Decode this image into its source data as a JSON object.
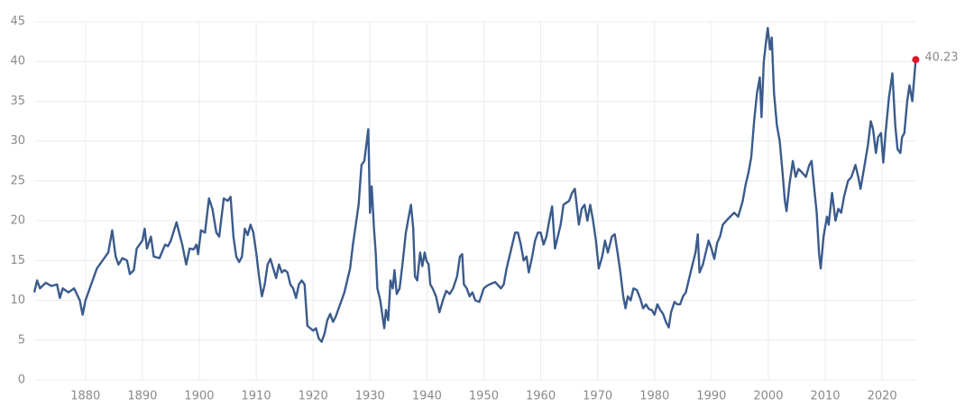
{
  "chart_data": {
    "type": "line",
    "x": [
      1871,
      1871.5,
      1872,
      1873,
      1874,
      1875,
      1875.5,
      1876,
      1877,
      1878,
      1879,
      1879.5,
      1880,
      1881,
      1882,
      1883,
      1884,
      1884.7,
      1885.3,
      1885.8,
      1886.5,
      1887.3,
      1887.8,
      1888.5,
      1889,
      1890,
      1890.4,
      1890.8,
      1891.5,
      1892,
      1893,
      1894,
      1894.5,
      1895,
      1896,
      1897,
      1897.7,
      1898.3,
      1899,
      1899.5,
      1899.8,
      1900.3,
      1901,
      1901.7,
      1902.3,
      1903,
      1903.5,
      1904.3,
      1905,
      1905.5,
      1906,
      1906.5,
      1907,
      1907.5,
      1908,
      1908.5,
      1909,
      1909.5,
      1910,
      1910.5,
      1911,
      1911.5,
      1912,
      1912.5,
      1913,
      1913.5,
      1914,
      1914.5,
      1915,
      1915.5,
      1916,
      1916.5,
      1917,
      1917.5,
      1918,
      1918.5,
      1919,
      1919.5,
      1920,
      1920.5,
      1921,
      1921.5,
      1922,
      1922.5,
      1923,
      1923.5,
      1924,
      1924.5,
      1925,
      1925.5,
      1926,
      1926.5,
      1927,
      1927.5,
      1928,
      1928.5,
      1929,
      1929.7,
      1930,
      1930.3,
      1930.7,
      1931,
      1931.3,
      1931.8,
      1932.2,
      1932.5,
      1932.8,
      1933.2,
      1933.6,
      1934,
      1934.3,
      1934.7,
      1935.2,
      1935.7,
      1936.3,
      1936.8,
      1937.2,
      1937.6,
      1937.9,
      1938.3,
      1938.8,
      1939.2,
      1939.6,
      1939.9,
      1940.3,
      1940.6,
      1941,
      1941.6,
      1942.2,
      1942.8,
      1943.4,
      1944,
      1944.6,
      1945.3,
      1945.8,
      1946.2,
      1946.5,
      1947,
      1947.5,
      1948,
      1948.5,
      1949.2,
      1950,
      1950.5,
      1951,
      1952,
      1953,
      1953.5,
      1954,
      1954.5,
      1955,
      1955.5,
      1956,
      1956.5,
      1957,
      1957.5,
      1957.9,
      1958.5,
      1959,
      1959.5,
      1960,
      1960.5,
      1961,
      1961.5,
      1962,
      1962.5,
      1963,
      1963.5,
      1964,
      1965,
      1965.5,
      1966,
      1966.7,
      1967.2,
      1967.7,
      1968.2,
      1968.7,
      1969.2,
      1969.7,
      1970.2,
      1970.8,
      1971.3,
      1971.8,
      1972.5,
      1973,
      1973.5,
      1974,
      1974.5,
      1974.9,
      1975.3,
      1975.8,
      1976.3,
      1976.9,
      1977.5,
      1978,
      1978.5,
      1979,
      1979.5,
      1980,
      1980.5,
      1981,
      1981.5,
      1982,
      1982.5,
      1982.9,
      1983.5,
      1984,
      1984.5,
      1985,
      1985.5,
      1986,
      1986.5,
      1987.2,
      1987.6,
      1987.9,
      1988.5,
      1989,
      1989.5,
      1990,
      1990.5,
      1991,
      1991.5,
      1992,
      1993,
      1994,
      1994.7,
      1995.5,
      1996,
      1996.5,
      1997,
      1997.5,
      1998,
      1998.5,
      1998.8,
      1999.2,
      1999.6,
      1999.9,
      2000.3,
      2000.6,
      2001,
      2001.5,
      2002,
      2002.5,
      2002.9,
      2003.2,
      2003.7,
      2004.3,
      2004.8,
      2005.3,
      2006,
      2006.6,
      2007.2,
      2007.6,
      2008,
      2008.5,
      2008.9,
      2009.2,
      2009.7,
      2010.3,
      2010.6,
      2011.2,
      2011.8,
      2012.3,
      2012.8,
      2013.3,
      2014,
      2014.6,
      2015.3,
      2015.8,
      2016.2,
      2016.8,
      2017.5,
      2018,
      2018.4,
      2018.9,
      2019.3,
      2019.8,
      2020.2,
      2020.6,
      2021.2,
      2021.8,
      2022.3,
      2022.7,
      2023.2,
      2023.5,
      2023.9,
      2024.4,
      2024.8,
      2025.3,
      2025.9
    ],
    "values": [
      11,
      12.5,
      11.5,
      12.2,
      11.8,
      12,
      10.3,
      11.5,
      11,
      11.5,
      10,
      8.2,
      10,
      12,
      14,
      15,
      16,
      18.8,
      15.5,
      14.5,
      15.3,
      15,
      13.3,
      13.8,
      16.5,
      17.5,
      19,
      16.5,
      18,
      15.5,
      15.3,
      17,
      16.8,
      17.5,
      19.8,
      17,
      14.5,
      16.5,
      16.4,
      17,
      15.8,
      18.8,
      18.5,
      22.8,
      21.5,
      18.5,
      18,
      22.8,
      22.5,
      23,
      18,
      15.5,
      14.8,
      15.5,
      19,
      18.2,
      19.5,
      18.5,
      16,
      13,
      10.5,
      12,
      14.5,
      15.2,
      14,
      12.8,
      14.5,
      13.5,
      13.8,
      13.5,
      12,
      11.5,
      10.3,
      12,
      12.5,
      12,
      6.8,
      6.5,
      6.2,
      6.5,
      5.2,
      4.8,
      5.8,
      7.5,
      8.3,
      7.3,
      8,
      9,
      10,
      11,
      12.5,
      14,
      17,
      19.5,
      22,
      27,
      27.5,
      31.5,
      21,
      24.3,
      19,
      16,
      11.5,
      10,
      8,
      6.5,
      8.8,
      7.5,
      12.5,
      11.5,
      13.8,
      10.8,
      11.5,
      14.5,
      18.5,
      20.5,
      22,
      19,
      13,
      12.5,
      16,
      14.3,
      16,
      15,
      14.5,
      12,
      11.5,
      10.5,
      8.5,
      10,
      11.2,
      10.8,
      11.5,
      13,
      15.5,
      15.8,
      12,
      11.5,
      10.5,
      11,
      10,
      9.8,
      11.5,
      11.8,
      12,
      12.3,
      11.5,
      12,
      14,
      15.5,
      17,
      18.5,
      18.5,
      17,
      15,
      15.5,
      13.5,
      15.5,
      17.5,
      18.5,
      18.5,
      17,
      18,
      20,
      21.8,
      16.5,
      18,
      19.5,
      22,
      22.5,
      23.5,
      24,
      19.5,
      21.5,
      22,
      20,
      22,
      20,
      17.5,
      14,
      15.5,
      17.5,
      16,
      18,
      18.3,
      16,
      13.5,
      10.5,
      9,
      10.5,
      10,
      11.5,
      11.3,
      10.2,
      9,
      9.5,
      8.9,
      8.8,
      8.2,
      9.5,
      8.8,
      8.3,
      7.3,
      6.6,
      8.5,
      9.8,
      9.5,
      9.5,
      10.5,
      11,
      12.5,
      14,
      16,
      18.3,
      13.5,
      14.5,
      16,
      17.5,
      16.5,
      15.2,
      17.2,
      18,
      19.5,
      20.3,
      21,
      20.5,
      22.5,
      24.5,
      26,
      28,
      32.5,
      36,
      38,
      33,
      40,
      42.5,
      44.2,
      41.5,
      43,
      36,
      32,
      30,
      26,
      22.5,
      21.2,
      24.5,
      27.5,
      25.5,
      26.5,
      26,
      25.5,
      27,
      27.5,
      24.5,
      21,
      16,
      14,
      18,
      20.5,
      19.5,
      23.5,
      20,
      21.5,
      21,
      23,
      25,
      25.5,
      27,
      25.5,
      24,
      26.5,
      29.5,
      32.5,
      31.5,
      28.5,
      30.5,
      31,
      27.3,
      31,
      35.5,
      38.5,
      32,
      29,
      28.5,
      30.5,
      31,
      35,
      37,
      35,
      40.23
    ],
    "color": "#3b5b8c",
    "marker_color": "#e3122b",
    "xlim": [
      1871,
      2026
    ],
    "xticks": [
      1880,
      1890,
      1900,
      1910,
      1920,
      1930,
      1940,
      1950,
      1960,
      1970,
      1980,
      1990,
      2000,
      2010,
      2020
    ],
    "ylim": [
      0,
      45
    ],
    "yticks": [
      0,
      5,
      10,
      15,
      20,
      25,
      30,
      35,
      40,
      45
    ],
    "grid": true
  }
}
